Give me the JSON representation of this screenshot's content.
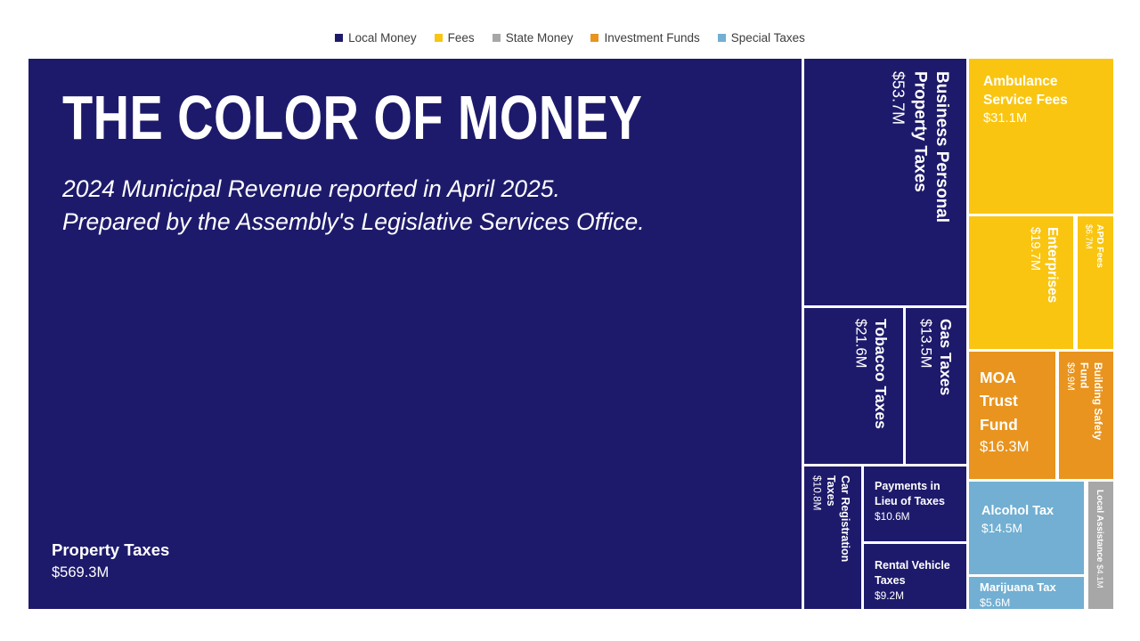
{
  "header": {
    "title": "THE COLOR OF MONEY",
    "subtitle_line1": "2024 Municipal Revenue reported in April 2025.",
    "subtitle_line2": "Prepared by the Assembly's Legislative Services Office."
  },
  "categories": {
    "local_money": {
      "label": "Local Money",
      "color": "#1E1A6B"
    },
    "fees": {
      "label": "Fees",
      "color": "#F9C511"
    },
    "state_money": {
      "label": "State Money",
      "color": "#A7A7A7"
    },
    "investment_funds": {
      "label": "Investment Funds",
      "color": "#E8941E"
    },
    "special_taxes": {
      "label": "Special Taxes",
      "color": "#72AFD2"
    }
  },
  "nodes": {
    "property_taxes": {
      "label": "Property Taxes",
      "value": "$569.3M"
    },
    "business_personal": {
      "label": "Business Personal Property Taxes",
      "value": "$53.7M"
    },
    "tobacco": {
      "label": "Tobacco Taxes",
      "value": "$21.6M"
    },
    "gas": {
      "label": "Gas Taxes",
      "value": "$13.5M"
    },
    "car_registration": {
      "label": "Car Registration Taxes",
      "value": "$10.8M"
    },
    "payments_lieu": {
      "label": "Payments in Lieu of Taxes",
      "value": "$10.6M"
    },
    "rental_vehicle": {
      "label": "Rental Vehicle Taxes",
      "value": "$9.2M"
    },
    "ambulance": {
      "label": "Ambulance Service Fees",
      "value": "$31.1M"
    },
    "enterprises": {
      "label": "Enterprises",
      "value": "$19.7M"
    },
    "apd_fees": {
      "label": "APD Fees",
      "value": "$6.7M"
    },
    "moa_trust": {
      "label": "MOA Trust Fund",
      "value": "$16.3M"
    },
    "building_safety": {
      "label": "Building Safety Fund",
      "value": "$9.9M"
    },
    "alcohol": {
      "label": "Alcohol Tax",
      "value": "$14.5M"
    },
    "marijuana": {
      "label": "Marijuana Tax",
      "value": "$5.6M"
    },
    "local_assistance": {
      "label": "Local Assistance",
      "value": "$4.1M"
    }
  },
  "chart_data": {
    "type": "treemap",
    "title": "THE COLOR OF MONEY",
    "subtitle": "2024 Municipal Revenue reported in April 2025. Prepared by the Assembly's Legislative Services Office.",
    "unit": "USD millions",
    "legend_position": "top-center",
    "legend_entries": [
      "Local Money",
      "Fees",
      "State Money",
      "Investment Funds",
      "Special Taxes"
    ],
    "series": [
      {
        "name": "Property Taxes",
        "value": 569.3,
        "category": "Local Money"
      },
      {
        "name": "Business Personal Property Taxes",
        "value": 53.7,
        "category": "Local Money"
      },
      {
        "name": "Ambulance Service Fees",
        "value": 31.1,
        "category": "Fees"
      },
      {
        "name": "Tobacco Taxes",
        "value": 21.6,
        "category": "Local Money"
      },
      {
        "name": "Enterprises",
        "value": 19.7,
        "category": "Fees"
      },
      {
        "name": "MOA Trust Fund",
        "value": 16.3,
        "category": "Investment Funds"
      },
      {
        "name": "Alcohol Tax",
        "value": 14.5,
        "category": "Special Taxes"
      },
      {
        "name": "Gas Taxes",
        "value": 13.5,
        "category": "Local Money"
      },
      {
        "name": "Car Registration Taxes",
        "value": 10.8,
        "category": "Local Money"
      },
      {
        "name": "Payments in Lieu of Taxes",
        "value": 10.6,
        "category": "Local Money"
      },
      {
        "name": "Building Safety Fund",
        "value": 9.9,
        "category": "Investment Funds"
      },
      {
        "name": "Rental Vehicle Taxes",
        "value": 9.2,
        "category": "Local Money"
      },
      {
        "name": "APD Fees",
        "value": 6.7,
        "category": "Fees"
      },
      {
        "name": "Marijuana Tax",
        "value": 5.6,
        "category": "Special Taxes"
      },
      {
        "name": "Local Assistance",
        "value": 4.1,
        "category": "State Money"
      }
    ]
  }
}
